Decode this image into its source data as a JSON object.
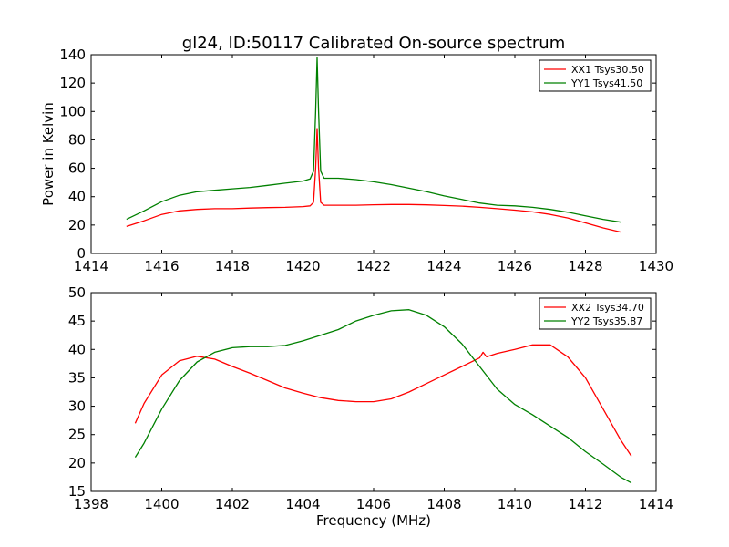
{
  "chart_data": [
    {
      "type": "line",
      "title": "gl24, ID:50117 Calibrated On-source spectrum",
      "xlabel": "",
      "ylabel": "Power in Kelvin",
      "xlim": [
        1414,
        1430
      ],
      "ylim": [
        0,
        140
      ],
      "xticks": [
        1414,
        1416,
        1418,
        1420,
        1422,
        1424,
        1426,
        1428,
        1430
      ],
      "yticks": [
        0,
        20,
        40,
        60,
        80,
        100,
        120,
        140
      ],
      "grid": false,
      "legend": "top-right",
      "series": [
        {
          "name": "XX1 Tsys30.50",
          "color": "#ff0000",
          "x": [
            1415.0,
            1415.5,
            1416.0,
            1416.5,
            1417.0,
            1417.5,
            1418.0,
            1418.5,
            1419.0,
            1419.5,
            1420.0,
            1420.2,
            1420.3,
            1420.36,
            1420.4,
            1420.44,
            1420.5,
            1420.6,
            1421.0,
            1421.5,
            1422.0,
            1422.5,
            1423.0,
            1423.5,
            1424.0,
            1424.5,
            1425.0,
            1425.5,
            1426.0,
            1426.5,
            1427.0,
            1427.5,
            1428.0,
            1428.5,
            1429.0
          ],
          "y": [
            19,
            23,
            27.5,
            30,
            31,
            31.5,
            31.5,
            32,
            32.3,
            32.5,
            33,
            33.5,
            36,
            60,
            88,
            60,
            36,
            34,
            34,
            34,
            34.3,
            34.5,
            34.5,
            34.2,
            33.8,
            33.3,
            32.5,
            31.5,
            30.5,
            29.3,
            27.5,
            25,
            21.5,
            18,
            15
          ]
        },
        {
          "name": "YY1 Tsys41.50",
          "color": "#008000",
          "x": [
            1415.0,
            1415.5,
            1416.0,
            1416.5,
            1417.0,
            1417.5,
            1418.0,
            1418.5,
            1419.0,
            1419.5,
            1420.0,
            1420.2,
            1420.3,
            1420.36,
            1420.4,
            1420.44,
            1420.5,
            1420.6,
            1421.0,
            1421.5,
            1422.0,
            1422.5,
            1423.0,
            1423.5,
            1424.0,
            1424.5,
            1425.0,
            1425.5,
            1426.0,
            1426.5,
            1427.0,
            1427.5,
            1428.0,
            1428.5,
            1429.0
          ],
          "y": [
            24,
            30,
            36.5,
            41,
            43.5,
            44.5,
            45.5,
            46.5,
            48,
            49.5,
            51,
            52.5,
            58,
            100,
            138,
            100,
            58,
            53,
            53,
            52,
            50.5,
            48.5,
            46,
            43.5,
            40.5,
            38,
            35.5,
            34,
            33.5,
            32.5,
            31,
            29,
            26.5,
            24,
            22
          ]
        }
      ]
    },
    {
      "type": "line",
      "title": "",
      "xlabel": "Frequency (MHz)",
      "ylabel": "",
      "xlim": [
        1398,
        1414
      ],
      "ylim": [
        15,
        50
      ],
      "xticks": [
        1398,
        1400,
        1402,
        1404,
        1406,
        1408,
        1410,
        1412,
        1414
      ],
      "yticks": [
        15,
        20,
        25,
        30,
        35,
        40,
        45,
        50
      ],
      "grid": false,
      "legend": "top-right",
      "series": [
        {
          "name": "XX2 Tsys34.70",
          "color": "#ff0000",
          "x": [
            1399.25,
            1399.5,
            1400.0,
            1400.5,
            1401.0,
            1401.5,
            1402.0,
            1402.5,
            1403.0,
            1403.5,
            1404.0,
            1404.5,
            1405.0,
            1405.5,
            1406.0,
            1406.5,
            1407.0,
            1407.5,
            1408.0,
            1408.5,
            1409.0,
            1409.1,
            1409.2,
            1409.5,
            1410.0,
            1410.5,
            1411.0,
            1411.5,
            1412.0,
            1412.5,
            1413.0,
            1413.3
          ],
          "y": [
            27,
            30.5,
            35.5,
            38,
            38.8,
            38.3,
            37,
            35.8,
            34.5,
            33.2,
            32.3,
            31.5,
            31,
            30.8,
            30.8,
            31.3,
            32.5,
            34,
            35.5,
            37,
            38.5,
            39.5,
            38.7,
            39.3,
            40,
            40.8,
            40.8,
            38.7,
            35,
            29.5,
            24,
            21.2
          ]
        },
        {
          "name": "YY2 Tsys35.87",
          "color": "#008000",
          "x": [
            1399.25,
            1399.5,
            1400.0,
            1400.5,
            1401.0,
            1401.5,
            1402.0,
            1402.5,
            1403.0,
            1403.5,
            1404.0,
            1404.5,
            1405.0,
            1405.5,
            1406.0,
            1406.5,
            1407.0,
            1407.5,
            1408.0,
            1408.5,
            1409.0,
            1409.5,
            1410.0,
            1410.5,
            1411.0,
            1411.5,
            1412.0,
            1412.5,
            1413.0,
            1413.3
          ],
          "y": [
            21,
            23.5,
            29.5,
            34.5,
            37.8,
            39.5,
            40.3,
            40.5,
            40.5,
            40.7,
            41.5,
            42.5,
            43.5,
            45,
            46,
            46.8,
            47,
            46,
            44,
            41,
            37,
            33,
            30.3,
            28.5,
            26.5,
            24.5,
            22,
            19.8,
            17.5,
            16.5
          ]
        }
      ]
    }
  ]
}
